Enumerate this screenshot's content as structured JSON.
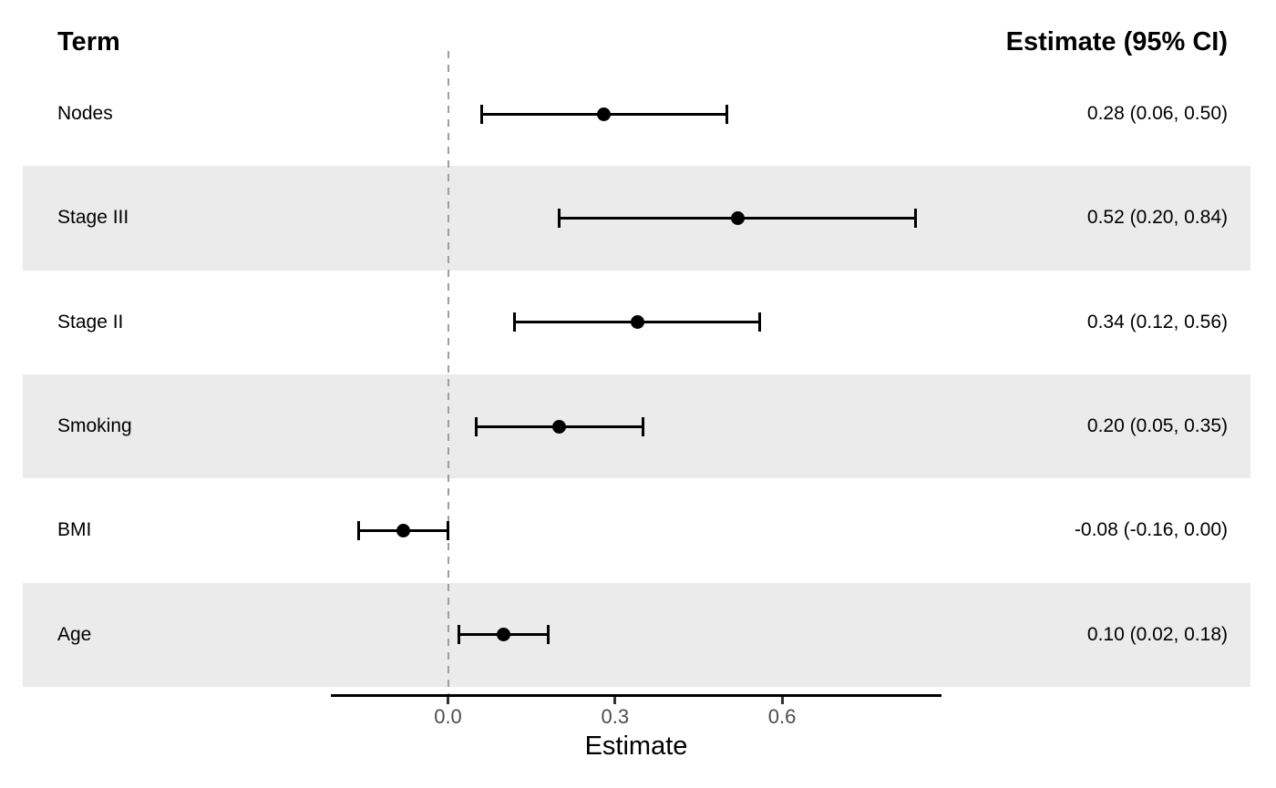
{
  "chart_data": {
    "type": "scatter",
    "variant": "forest-plot",
    "term_header": "Term",
    "estimate_header": "Estimate (95% CI)",
    "xlabel": "Estimate",
    "xlim": [
      -0.21,
      0.89
    ],
    "grid": "off",
    "reference_line_x": 0,
    "x_ticks": [
      {
        "value": 0.0,
        "label": "0.0"
      },
      {
        "value": 0.3,
        "label": "0.3"
      },
      {
        "value": 0.6,
        "label": "0.6"
      }
    ],
    "rows": [
      {
        "term": "Nodes",
        "estimate": 0.28,
        "ci_low": 0.06,
        "ci_high": 0.5,
        "estimate_label": "0.28 (0.06, 0.50)",
        "shaded": false
      },
      {
        "term": "Stage III",
        "estimate": 0.52,
        "ci_low": 0.2,
        "ci_high": 0.84,
        "estimate_label": "0.52 (0.20, 0.84)",
        "shaded": true
      },
      {
        "term": "Stage II",
        "estimate": 0.34,
        "ci_low": 0.12,
        "ci_high": 0.56,
        "estimate_label": "0.34 (0.12, 0.56)",
        "shaded": false
      },
      {
        "term": "Smoking",
        "estimate": 0.2,
        "ci_low": 0.05,
        "ci_high": 0.35,
        "estimate_label": "0.20 (0.05, 0.35)",
        "shaded": true
      },
      {
        "term": "BMI",
        "estimate": -0.08,
        "ci_low": -0.16,
        "ci_high": 0.0,
        "estimate_label": "-0.08 (-0.16, 0.00)",
        "shaded": false
      },
      {
        "term": "Age",
        "estimate": 0.1,
        "ci_low": 0.02,
        "ci_high": 0.18,
        "estimate_label": "0.10 (0.02, 0.18)",
        "shaded": true
      }
    ],
    "colors": {
      "background": "#FFFFFF",
      "stripe": "#EBEBEB",
      "marker": "#000000",
      "ci_line": "#000000",
      "reference_line": "#9E9E9E",
      "axis_line": "#000000",
      "tick_mark": "#333333",
      "tick_label": "#4D4D4D",
      "text": "#000000"
    }
  }
}
